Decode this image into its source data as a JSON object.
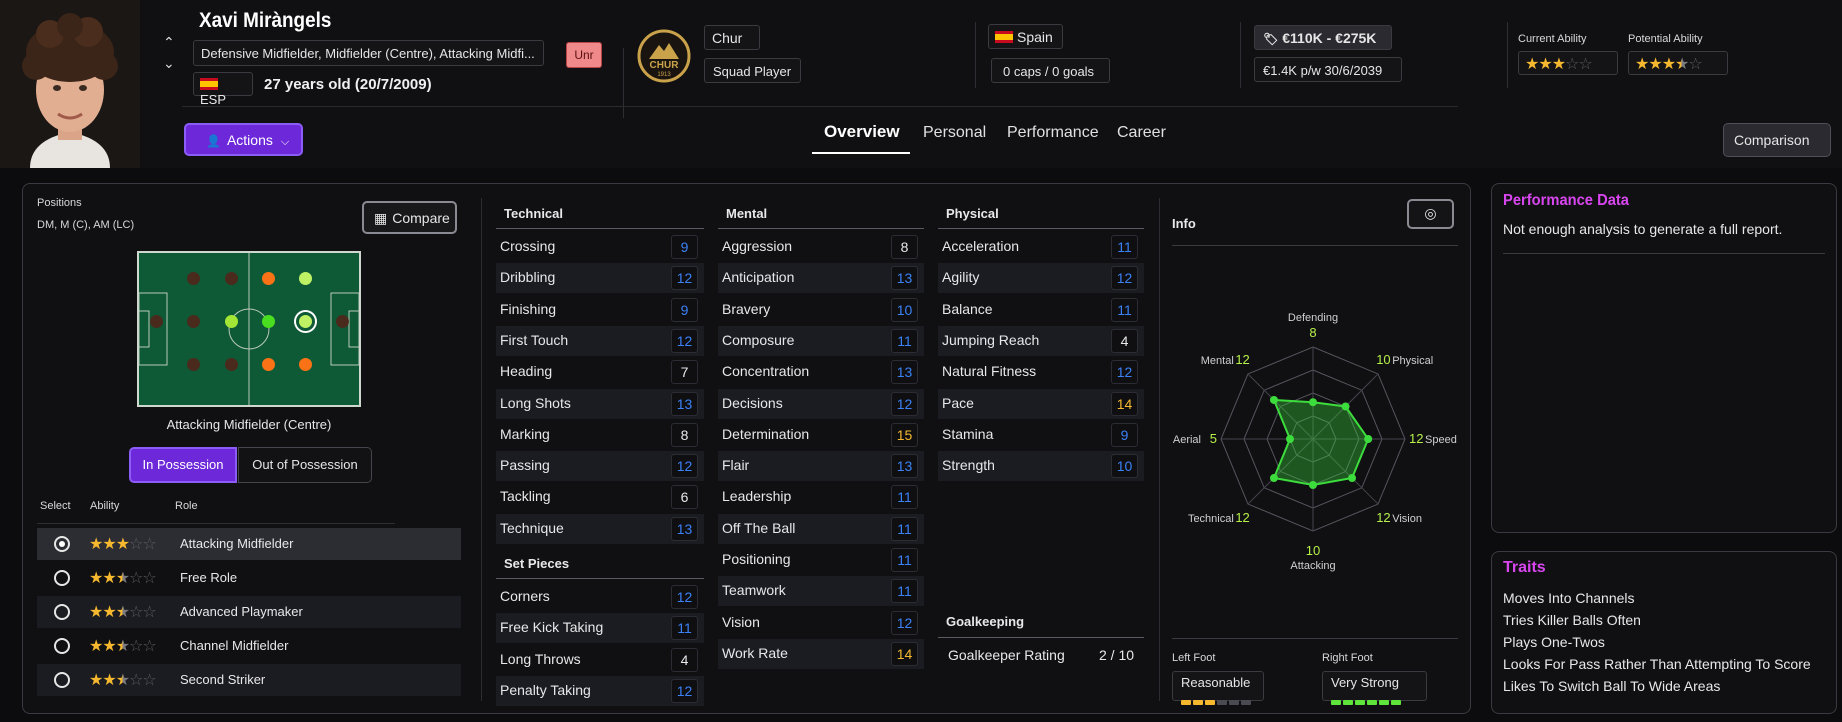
{
  "player": {
    "name": "Xavi Miràngels",
    "positions_text": "Defensive Midfielder, Midfielder (Centre), Attacking Midfi...",
    "unr_badge": "Unr",
    "nation_code": "ESP",
    "age_text": "27 years old (20/7/2009)"
  },
  "club": {
    "name": "Chur",
    "status": "Squad Player",
    "crest_text": "CHUR",
    "crest_year": "1913"
  },
  "nation": {
    "name": "Spain",
    "caps": "0 caps / 0 goals"
  },
  "value": {
    "range": "€110K - €275K",
    "wage": "€1.4K p/w 30/6/2039"
  },
  "ability": {
    "current_label": "Current Ability",
    "potential_label": "Potential Ability",
    "current_stars": 3,
    "potential_stars": 3.5
  },
  "actions_label": "Actions",
  "comparison_label": "Comparison",
  "tabs": [
    "Overview",
    "Personal",
    "Performance",
    "Career"
  ],
  "positions_panel": {
    "title": "Positions",
    "codes": "DM, M (C), AM (LC)",
    "compare_label": "Compare",
    "selected_position": "Attacking Midfielder (Centre)",
    "in_possession": "In Possession",
    "out_possession": "Out of Possession",
    "col_select": "Select",
    "col_ability": "Ability",
    "col_role": "Role",
    "roles": [
      {
        "name": "Attacking Midfielder",
        "stars": 3,
        "selected": true
      },
      {
        "name": "Free Role",
        "stars": 2.5,
        "selected": false
      },
      {
        "name": "Advanced Playmaker",
        "stars": 2.5,
        "selected": false
      },
      {
        "name": "Channel Midfielder",
        "stars": 2.5,
        "selected": false
      },
      {
        "name": "Second Striker",
        "stars": 2.5,
        "selected": false
      }
    ]
  },
  "technical": {
    "title": "Technical",
    "attrs": [
      {
        "label": "Crossing",
        "value": "9"
      },
      {
        "label": "Dribbling",
        "value": "12"
      },
      {
        "label": "Finishing",
        "value": "9"
      },
      {
        "label": "First Touch",
        "value": "12"
      },
      {
        "label": "Heading",
        "value": "7"
      },
      {
        "label": "Long Shots",
        "value": "13"
      },
      {
        "label": "Marking",
        "value": "8"
      },
      {
        "label": "Passing",
        "value": "12"
      },
      {
        "label": "Tackling",
        "value": "6"
      },
      {
        "label": "Technique",
        "value": "13"
      }
    ]
  },
  "set_pieces": {
    "title": "Set Pieces",
    "attrs": [
      {
        "label": "Corners",
        "value": "12"
      },
      {
        "label": "Free Kick Taking",
        "value": "11"
      },
      {
        "label": "Long Throws",
        "value": "4"
      },
      {
        "label": "Penalty Taking",
        "value": "12"
      }
    ]
  },
  "mental": {
    "title": "Mental",
    "attrs": [
      {
        "label": "Aggression",
        "value": "8"
      },
      {
        "label": "Anticipation",
        "value": "13"
      },
      {
        "label": "Bravery",
        "value": "10"
      },
      {
        "label": "Composure",
        "value": "11"
      },
      {
        "label": "Concentration",
        "value": "13"
      },
      {
        "label": "Decisions",
        "value": "12"
      },
      {
        "label": "Determination",
        "value": "15"
      },
      {
        "label": "Flair",
        "value": "13"
      },
      {
        "label": "Leadership",
        "value": "11"
      },
      {
        "label": "Off The Ball",
        "value": "11"
      },
      {
        "label": "Positioning",
        "value": "11"
      },
      {
        "label": "Teamwork",
        "value": "11"
      },
      {
        "label": "Vision",
        "value": "12"
      },
      {
        "label": "Work Rate",
        "value": "14"
      }
    ]
  },
  "physical": {
    "title": "Physical",
    "attrs": [
      {
        "label": "Acceleration",
        "value": "11"
      },
      {
        "label": "Agility",
        "value": "12"
      },
      {
        "label": "Balance",
        "value": "11"
      },
      {
        "label": "Jumping Reach",
        "value": "4"
      },
      {
        "label": "Natural Fitness",
        "value": "12"
      },
      {
        "label": "Pace",
        "value": "14"
      },
      {
        "label": "Stamina",
        "value": "9"
      },
      {
        "label": "Strength",
        "value": "10"
      }
    ]
  },
  "goalkeeping": {
    "title": "Goalkeeping",
    "label": "Goalkeeper Rating",
    "value": "2 / 10"
  },
  "info": {
    "title": "Info",
    "radar": [
      {
        "axis": "Defending",
        "value": 8
      },
      {
        "axis": "Physical",
        "value": 10
      },
      {
        "axis": "Speed",
        "value": 12
      },
      {
        "axis": "Vision",
        "value": 12
      },
      {
        "axis": "Attacking",
        "value": 10
      },
      {
        "axis": "Technical",
        "value": 12
      },
      {
        "axis": "Aerial",
        "value": 5
      },
      {
        "axis": "Mental",
        "value": 12
      }
    ],
    "left_foot_label": "Left Foot",
    "left_foot_value": "Reasonable",
    "left_foot_level": 3,
    "right_foot_label": "Right Foot",
    "right_foot_value": "Very Strong",
    "right_foot_level": 6
  },
  "performance": {
    "title": "Performance Data",
    "text": "Not enough analysis to generate a full report."
  },
  "traits": {
    "title": "Traits",
    "items": [
      "Moves Into Channels",
      "Tries Killer Balls Often",
      "Plays One-Twos",
      "Looks For Pass Rather Than Attempting To Score",
      "Likes To Switch Ball To Wide Areas"
    ]
  },
  "colors": {
    "accent": "#7c3aed",
    "value_blue": "#3b82f6",
    "value_gold": "#f5b82e",
    "radar_green": "#3ddc3d",
    "trait_title": "#d946ef",
    "star": "#f5b82e"
  }
}
